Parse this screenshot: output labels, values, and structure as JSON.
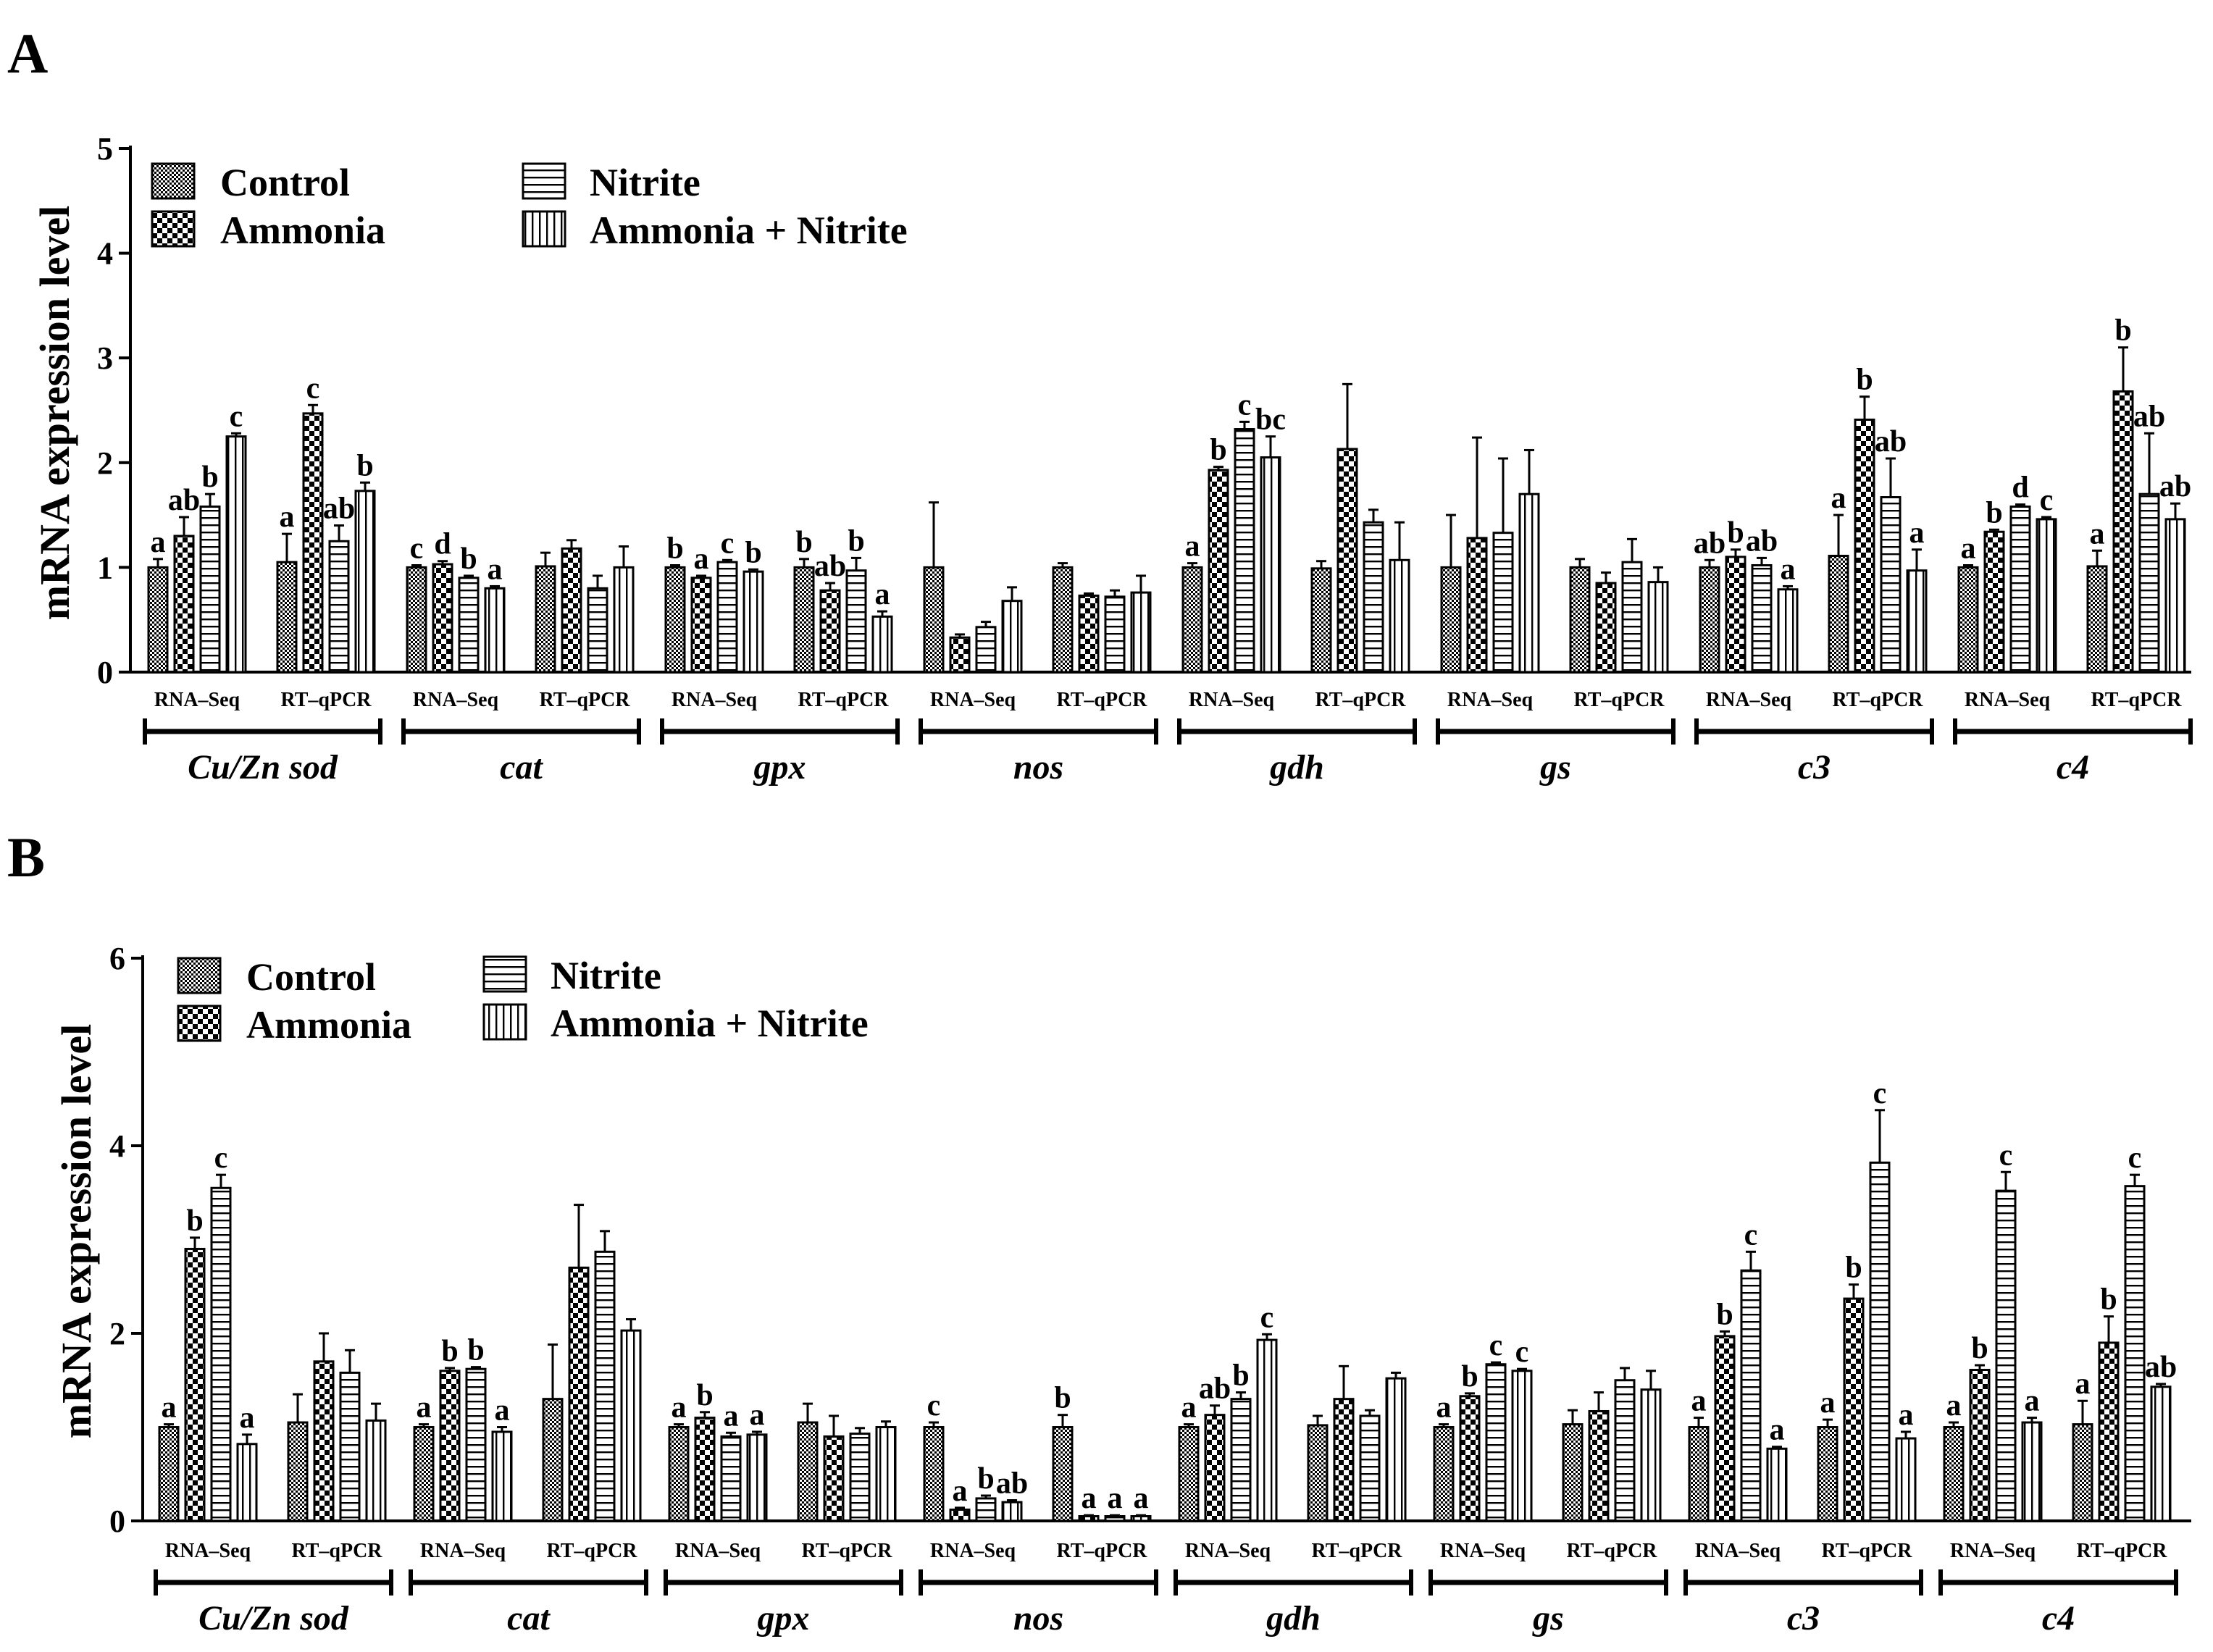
{
  "chart_data": [
    {
      "type": "bar",
      "panel": "A",
      "ylabel": "mRNA expression level",
      "ylim": [
        0,
        5
      ],
      "yticks": [
        0,
        1,
        2,
        3,
        4,
        5
      ],
      "series_names": [
        "Control",
        "Ammonia",
        "Nitrite",
        "Ammonia + Nitrite"
      ],
      "genes": [
        {
          "name": "Cu/Zn sod",
          "groups": [
            {
              "method": "RNA–Seq",
              "values": [
                1.0,
                1.3,
                1.58,
                2.25
              ],
              "errors": [
                0.08,
                0.18,
                0.12,
                0.03
              ],
              "letters": [
                "a",
                "ab",
                "b",
                "c"
              ]
            },
            {
              "method": "RT–qPCR",
              "values": [
                1.05,
                2.47,
                1.25,
                1.73
              ],
              "errors": [
                0.27,
                0.08,
                0.15,
                0.08
              ],
              "letters": [
                "a",
                "c",
                "ab",
                "b"
              ]
            }
          ]
        },
        {
          "name": "cat",
          "groups": [
            {
              "method": "RNA–Seq",
              "values": [
                1.0,
                1.03,
                0.9,
                0.8
              ],
              "errors": [
                0.02,
                0.03,
                0.02,
                0.02
              ],
              "letters": [
                "c",
                "d",
                "b",
                "a"
              ]
            },
            {
              "method": "RT–qPCR",
              "values": [
                1.01,
                1.18,
                0.8,
                1.0
              ],
              "errors": [
                0.13,
                0.08,
                0.12,
                0.2
              ],
              "letters": [
                "",
                "",
                "",
                ""
              ]
            }
          ]
        },
        {
          "name": "gpx",
          "groups": [
            {
              "method": "RNA–Seq",
              "values": [
                1.0,
                0.9,
                1.05,
                0.96
              ],
              "errors": [
                0.02,
                0.02,
                0.02,
                0.02
              ],
              "letters": [
                "b",
                "a",
                "c",
                "b"
              ]
            },
            {
              "method": "RT–qPCR",
              "values": [
                1.0,
                0.78,
                0.97,
                0.53
              ],
              "errors": [
                0.08,
                0.07,
                0.12,
                0.05
              ],
              "letters": [
                "b",
                "ab",
                "b",
                "a"
              ]
            }
          ]
        },
        {
          "name": "nos",
          "groups": [
            {
              "method": "RNA–Seq",
              "values": [
                1.0,
                0.33,
                0.43,
                0.68
              ],
              "errors": [
                0.62,
                0.03,
                0.05,
                0.13
              ],
              "letters": [
                "",
                "",
                "",
                ""
              ]
            },
            {
              "method": "RT–qPCR",
              "values": [
                1.0,
                0.73,
                0.72,
                0.76
              ],
              "errors": [
                0.04,
                0.02,
                0.06,
                0.16
              ],
              "letters": [
                "",
                "",
                "",
                ""
              ]
            }
          ]
        },
        {
          "name": "gdh",
          "groups": [
            {
              "method": "RNA–Seq",
              "values": [
                1.0,
                1.93,
                2.32,
                2.05
              ],
              "errors": [
                0.04,
                0.03,
                0.07,
                0.2
              ],
              "letters": [
                "a",
                "b",
                "c",
                "bc"
              ]
            },
            {
              "method": "RT–qPCR",
              "values": [
                0.99,
                2.13,
                1.43,
                1.07
              ],
              "errors": [
                0.07,
                0.62,
                0.12,
                0.36
              ],
              "letters": [
                "",
                "",
                "",
                ""
              ]
            }
          ]
        },
        {
          "name": "gs",
          "groups": [
            {
              "method": "RNA–Seq",
              "values": [
                1.0,
                1.28,
                1.33,
                1.7
              ],
              "errors": [
                0.5,
                0.96,
                0.71,
                0.42
              ],
              "letters": [
                "",
                "",
                "",
                ""
              ]
            },
            {
              "method": "RT–qPCR",
              "values": [
                1.0,
                0.85,
                1.05,
                0.86
              ],
              "errors": [
                0.08,
                0.1,
                0.22,
                0.14
              ],
              "letters": [
                "",
                "",
                "",
                ""
              ]
            }
          ]
        },
        {
          "name": "c3",
          "groups": [
            {
              "method": "RNA–Seq",
              "values": [
                1.0,
                1.1,
                1.02,
                0.79
              ],
              "errors": [
                0.07,
                0.07,
                0.07,
                0.03
              ],
              "letters": [
                "ab",
                "b",
                "ab",
                "a"
              ]
            },
            {
              "method": "RT–qPCR",
              "values": [
                1.11,
                2.41,
                1.67,
                0.97
              ],
              "errors": [
                0.39,
                0.22,
                0.37,
                0.2
              ],
              "letters": [
                "a",
                "b",
                "ab",
                "a"
              ]
            }
          ]
        },
        {
          "name": "c4",
          "groups": [
            {
              "method": "RNA–Seq",
              "values": [
                1.0,
                1.34,
                1.58,
                1.46
              ],
              "errors": [
                0.02,
                0.02,
                0.02,
                0.02
              ],
              "letters": [
                "a",
                "b",
                "d",
                "c"
              ]
            },
            {
              "method": "RT–qPCR",
              "values": [
                1.01,
                2.68,
                1.7,
                1.46
              ],
              "errors": [
                0.15,
                0.42,
                0.58,
                0.15
              ],
              "letters": [
                "a",
                "b",
                "ab",
                "ab"
              ]
            }
          ]
        }
      ]
    },
    {
      "type": "bar",
      "panel": "B",
      "ylabel": "mRNA expression level",
      "ylim": [
        0,
        6
      ],
      "yticks": [
        0,
        2,
        4,
        6
      ],
      "series_names": [
        "Control",
        "Ammonia",
        "Nitrite",
        "Ammonia + Nitrite"
      ],
      "genes": [
        {
          "name": "Cu/Zn sod",
          "groups": [
            {
              "method": "RNA–Seq",
              "values": [
                1.0,
                2.9,
                3.55,
                0.82
              ],
              "errors": [
                0.03,
                0.12,
                0.14,
                0.1
              ],
              "letters": [
                "a",
                "b",
                "c",
                "a"
              ]
            },
            {
              "method": "RT–qPCR",
              "values": [
                1.05,
                1.7,
                1.58,
                1.07
              ],
              "errors": [
                0.3,
                0.3,
                0.24,
                0.18
              ],
              "letters": [
                "",
                "",
                "",
                ""
              ]
            }
          ]
        },
        {
          "name": "cat",
          "groups": [
            {
              "method": "RNA–Seq",
              "values": [
                1.0,
                1.6,
                1.62,
                0.95
              ],
              "errors": [
                0.03,
                0.03,
                0.02,
                0.05
              ],
              "letters": [
                "a",
                "b",
                "b",
                "a"
              ]
            },
            {
              "method": "RT–qPCR",
              "values": [
                1.3,
                2.7,
                2.87,
                2.03
              ],
              "errors": [
                0.58,
                0.67,
                0.22,
                0.12
              ],
              "letters": [
                "",
                "",
                "",
                ""
              ]
            }
          ]
        },
        {
          "name": "gpx",
          "groups": [
            {
              "method": "RNA–Seq",
              "values": [
                1.0,
                1.1,
                0.9,
                0.92
              ],
              "errors": [
                0.03,
                0.06,
                0.04,
                0.03
              ],
              "letters": [
                "a",
                "b",
                "a",
                "a"
              ]
            },
            {
              "method": "RT–qPCR",
              "values": [
                1.05,
                0.9,
                0.93,
                1.0
              ],
              "errors": [
                0.2,
                0.22,
                0.06,
                0.06
              ],
              "letters": [
                "",
                "",
                "",
                ""
              ]
            }
          ]
        },
        {
          "name": "nos",
          "groups": [
            {
              "method": "RNA–Seq",
              "values": [
                1.0,
                0.12,
                0.24,
                0.2
              ],
              "errors": [
                0.05,
                0.02,
                0.03,
                0.02
              ],
              "letters": [
                "c",
                "a",
                "b",
                "ab"
              ]
            },
            {
              "method": "RT–qPCR",
              "values": [
                1.0,
                0.05,
                0.05,
                0.05
              ],
              "errors": [
                0.13,
                0.01,
                0.01,
                0.01
              ],
              "letters": [
                "b",
                "a",
                "a",
                "a"
              ]
            }
          ]
        },
        {
          "name": "gdh",
          "groups": [
            {
              "method": "RNA–Seq",
              "values": [
                1.0,
                1.13,
                1.3,
                1.93
              ],
              "errors": [
                0.03,
                0.1,
                0.07,
                0.06
              ],
              "letters": [
                "a",
                "ab",
                "b",
                "c"
              ]
            },
            {
              "method": "RT–qPCR",
              "values": [
                1.02,
                1.3,
                1.12,
                1.52
              ],
              "errors": [
                0.1,
                0.35,
                0.06,
                0.06
              ],
              "letters": [
                "",
                "",
                "",
                ""
              ]
            }
          ]
        },
        {
          "name": "gs",
          "groups": [
            {
              "method": "RNA–Seq",
              "values": [
                1.0,
                1.33,
                1.67,
                1.6
              ],
              "errors": [
                0.03,
                0.03,
                0.02,
                0.02
              ],
              "letters": [
                "a",
                "b",
                "c",
                "c"
              ]
            },
            {
              "method": "RT–qPCR",
              "values": [
                1.03,
                1.17,
                1.5,
                1.4
              ],
              "errors": [
                0.15,
                0.2,
                0.13,
                0.2
              ],
              "letters": [
                "",
                "",
                "",
                ""
              ]
            }
          ]
        },
        {
          "name": "c3",
          "groups": [
            {
              "method": "RNA–Seq",
              "values": [
                1.0,
                1.97,
                2.67,
                0.77
              ],
              "errors": [
                0.1,
                0.05,
                0.2,
                0.02
              ],
              "letters": [
                "a",
                "b",
                "c",
                "a"
              ]
            },
            {
              "method": "RT–qPCR",
              "values": [
                1.0,
                2.37,
                3.82,
                0.88
              ],
              "errors": [
                0.08,
                0.15,
                0.56,
                0.07
              ],
              "letters": [
                "a",
                "b",
                "c",
                "a"
              ]
            }
          ]
        },
        {
          "name": "c4",
          "groups": [
            {
              "method": "RNA–Seq",
              "values": [
                1.0,
                1.61,
                3.52,
                1.05
              ],
              "errors": [
                0.05,
                0.05,
                0.2,
                0.05
              ],
              "letters": [
                "a",
                "b",
                "c",
                "a"
              ]
            },
            {
              "method": "RT–qPCR",
              "values": [
                1.03,
                1.9,
                3.57,
                1.43
              ],
              "errors": [
                0.25,
                0.28,
                0.12,
                0.03
              ],
              "letters": [
                "a",
                "b",
                "c",
                "ab"
              ]
            }
          ]
        }
      ]
    }
  ],
  "colors": {
    "ink": "#000000",
    "background": "#ffffff"
  }
}
